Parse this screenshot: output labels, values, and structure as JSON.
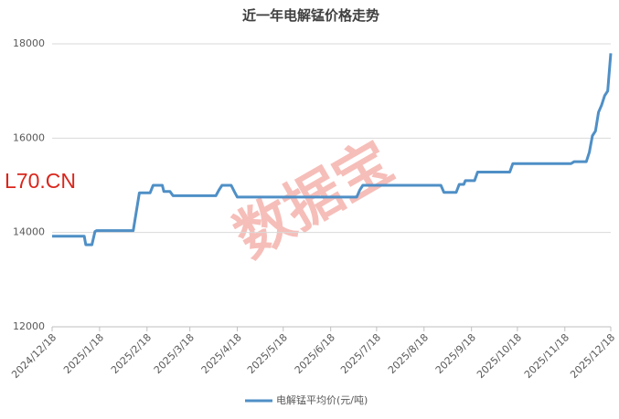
{
  "chart_data": {
    "type": "line",
    "title": "近一年电解锰价格走势",
    "watermarks": [
      "L70.CN",
      "数据宝"
    ],
    "xlim": [
      "2024/12/18",
      "2025/12/18"
    ],
    "xticks": [
      "2024/12/18",
      "2025/1/18",
      "2025/2/18",
      "2025/3/18",
      "2025/4/18",
      "2025/5/18",
      "2025/6/18",
      "2025/7/18",
      "2025/8/18",
      "2025/9/18",
      "2025/10/18",
      "2025/11/18",
      "2025/12/18"
    ],
    "ylim": [
      12000,
      18000
    ],
    "yticks": [
      12000,
      14000,
      16000,
      18000
    ],
    "grid": true,
    "legend": "bottom",
    "x": [
      "2024/12/18",
      "2025/1/8",
      "2025/1/9",
      "2025/1/13",
      "2025/1/15",
      "2025/1/16",
      "2025/2/9",
      "2025/2/13",
      "2025/2/20",
      "2025/2/22",
      "2025/2/28",
      "2025/3/1",
      "2025/3/5",
      "2025/3/7",
      "2025/4/4",
      "2025/4/6",
      "2025/4/8",
      "2025/4/14",
      "2025/4/16",
      "2025/4/18",
      "2025/7/5",
      "2025/7/7",
      "2025/7/9",
      "2025/8/29",
      "2025/8/31",
      "2025/9/8",
      "2025/9/10",
      "2025/9/13",
      "2025/9/14",
      "2025/9/20",
      "2025/9/22",
      "2025/10/13",
      "2025/10/15",
      "2025/11/22",
      "2025/11/24",
      "2025/12/2",
      "2025/12/4",
      "2025/12/6",
      "2025/12/8",
      "2025/12/10",
      "2025/12/12",
      "2025/12/14",
      "2025/12/16",
      "2025/12/17",
      "2025/12/18"
    ],
    "series": [
      {
        "name": "电解锰平均价(元/吨)",
        "color": "#4f8fc6",
        "values": [
          13920,
          13920,
          13740,
          13740,
          14020,
          14040,
          14040,
          14840,
          14840,
          15000,
          15000,
          14870,
          14870,
          14780,
          14780,
          14900,
          15000,
          15000,
          14870,
          14750,
          14750,
          14900,
          15000,
          15000,
          14850,
          14850,
          15020,
          15020,
          15100,
          15100,
          15280,
          15280,
          15460,
          15460,
          15500,
          15500,
          15700,
          16050,
          16150,
          16550,
          16700,
          16900,
          17000,
          17400,
          17800
        ]
      }
    ]
  }
}
